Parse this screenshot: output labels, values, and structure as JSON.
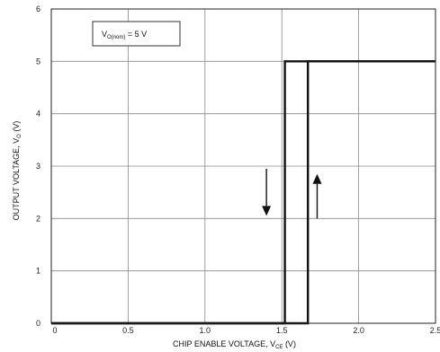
{
  "chart_data": {
    "type": "line",
    "title": "",
    "xlabel": "CHIP ENABLE VOLTAGE, V",
    "xlabel_sub": "CE",
    "xlabel_unit": " (V)",
    "ylabel": "OUTPUT VOLTAGE, V",
    "ylabel_sub": "O",
    "ylabel_unit": " (V)",
    "xlim": [
      0,
      2.5
    ],
    "ylim": [
      0,
      6
    ],
    "xticks": [
      0,
      0.5,
      1.0,
      1.5,
      2.0,
      2.5
    ],
    "xtick_labels": [
      "0",
      "0.5",
      "1.0",
      "1.5",
      "2.0",
      "2.5"
    ],
    "yticks": [
      0,
      1,
      2,
      3,
      4,
      5,
      6
    ],
    "ytick_labels": [
      "0",
      "1",
      "2",
      "3",
      "4",
      "5",
      "6"
    ],
    "grid": true,
    "annotation": {
      "prefix": "V",
      "sub": "O(nom)",
      "suffix": " = 5 V",
      "position": "top-left"
    },
    "series": [
      {
        "values": [
          [
            0,
            0
          ],
          [
            1.52,
            0
          ],
          [
            1.52,
            5
          ],
          [
            2.5,
            5
          ]
        ],
        "color": "#111111"
      },
      {
        "values": [
          [
            0,
            0
          ],
          [
            1.67,
            0
          ],
          [
            1.67,
            5
          ],
          [
            2.5,
            5
          ]
        ],
        "color": "#111111"
      }
    ],
    "arrows": [
      {
        "direction": "down",
        "x": 1.4,
        "y_from": 2.95,
        "y_to": 2.05
      },
      {
        "direction": "up",
        "x": 1.73,
        "y_from": 2.0,
        "y_to": 2.85
      }
    ]
  }
}
